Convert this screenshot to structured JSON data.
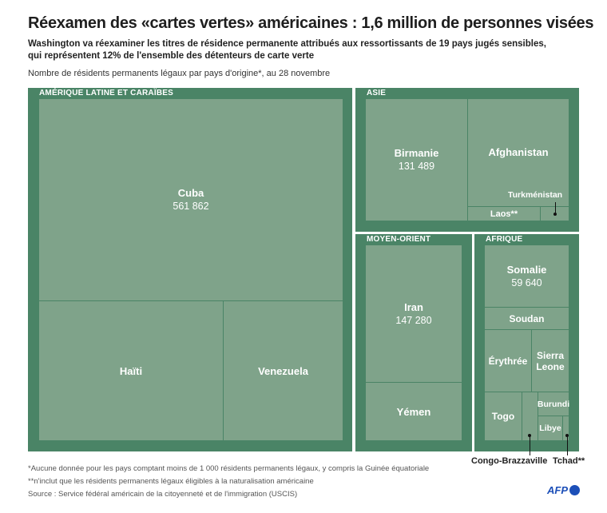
{
  "title": "Réexamen des «cartes vertes» américaines : 1,6 million de personnes visées",
  "subtitle_line1": "Washington va réexaminer les titres de résidence permanente attribués aux ressortissants de 19 pays jugés sensibles,",
  "subtitle_line2": "qui représentent 12% de l'ensemble des détenteurs de carte verte",
  "note": "Nombre de résidents permanents légaux par pays d'origine*, au 28 novembre",
  "colors": {
    "region": "#4a8466",
    "cell": "#7fa38a"
  },
  "chart_data": {
    "type": "treemap",
    "regions": [
      {
        "name": "AMÉRIQUE LATINE ET CARAÏBES",
        "items": [
          {
            "name": "Cuba",
            "value": 561862
          },
          {
            "name": "Haïti"
          },
          {
            "name": "Venezuela"
          }
        ]
      },
      {
        "name": "ASIE",
        "items": [
          {
            "name": "Birmanie",
            "value": 131489
          },
          {
            "name": "Afghanistan"
          },
          {
            "name": "Laos**"
          },
          {
            "name": "Turkménistan"
          }
        ]
      },
      {
        "name": "MOYEN-ORIENT",
        "items": [
          {
            "name": "Iran",
            "value": 147280
          },
          {
            "name": "Yémen"
          }
        ]
      },
      {
        "name": "AFRIQUE",
        "items": [
          {
            "name": "Somalie",
            "value": 59640
          },
          {
            "name": "Soudan"
          },
          {
            "name": "Érythrée"
          },
          {
            "name": "Sierra Leone"
          },
          {
            "name": "Togo"
          },
          {
            "name": "Congo-Brazzaville"
          },
          {
            "name": "Burundi"
          },
          {
            "name": "Libye"
          },
          {
            "name": "Tchad**"
          }
        ]
      }
    ],
    "value_labels": {
      "Cuba": "561 862",
      "Birmanie": "131 489",
      "Iran": "147 280",
      "Somalie": "59 640"
    }
  },
  "footnotes": [
    "*Aucune donnée pour les pays comptant moins de 1 000 résidents permanents légaux, y compris la Guinée équatoriale",
    "**n'inclut que les résidents permanents légaux éligibles à la naturalisation américaine",
    "Source : Service fédéral américain de la citoyenneté et de l'immigration (USCIS)"
  ],
  "logo": "AFP"
}
